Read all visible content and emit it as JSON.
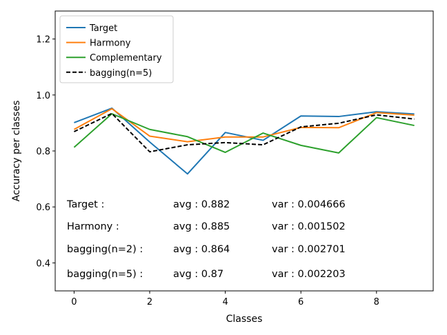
{
  "chart_data": {
    "type": "line",
    "xlabel": "Classes",
    "ylabel": "Accuracy per classes",
    "xlim": [
      -0.5,
      9.5
    ],
    "ylim": [
      0.3,
      1.3
    ],
    "xticks": [
      0,
      2,
      4,
      6,
      8
    ],
    "yticks": [
      0.4,
      0.6,
      0.8,
      1.0,
      1.2
    ],
    "xtick_labels": [
      "0",
      "2",
      "4",
      "6",
      "8"
    ],
    "ytick_labels": [
      "0.4",
      "0.6",
      "0.8",
      "1.0",
      "1.2"
    ],
    "grid": false,
    "legend_position": "top-left",
    "x": [
      0,
      1,
      2,
      3,
      4,
      5,
      6,
      7,
      8,
      9
    ],
    "series": [
      {
        "name": "Target",
        "color": "#1f77b4",
        "dash": "solid",
        "values": [
          0.901,
          0.953,
          0.832,
          0.718,
          0.866,
          0.838,
          0.925,
          0.923,
          0.94,
          0.932
        ]
      },
      {
        "name": "Harmony",
        "color": "#ff7f0e",
        "dash": "solid",
        "values": [
          0.877,
          0.951,
          0.853,
          0.833,
          0.85,
          0.85,
          0.884,
          0.883,
          0.937,
          0.928
        ]
      },
      {
        "name": "Complementary",
        "color": "#2ca02c",
        "dash": "solid",
        "values": [
          0.813,
          0.933,
          0.877,
          0.851,
          0.795,
          0.864,
          0.82,
          0.793,
          0.919,
          0.891
        ]
      },
      {
        "name": "bagging(n=5)",
        "color": "#000000",
        "dash": "dashed",
        "values": [
          0.869,
          0.934,
          0.797,
          0.822,
          0.83,
          0.822,
          0.886,
          0.899,
          0.929,
          0.914
        ]
      }
    ],
    "annotations": [
      {
        "name": "Target  :",
        "avg": "avg : 0.882",
        "var": "var : 0.004666"
      },
      {
        "name": "Harmony  :",
        "avg": "avg : 0.885",
        "var": "var : 0.001502"
      },
      {
        "name": "bagging(n=2)  :",
        "avg": "avg : 0.864",
        "var": "var : 0.002701"
      },
      {
        "name": "bagging(n=5)  :",
        "avg": "avg : 0.87",
        "var": "var : 0.002203"
      }
    ]
  }
}
